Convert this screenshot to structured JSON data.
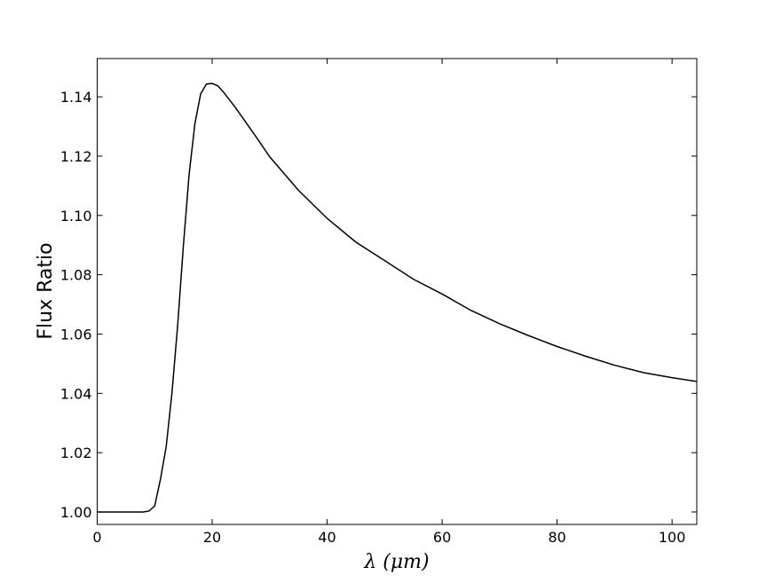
{
  "chart_data": {
    "type": "line",
    "xlabel": "λ (μm)",
    "ylabel": "Flux Ratio",
    "x": [
      0,
      8,
      9,
      10,
      11,
      12,
      13,
      14,
      15,
      16,
      17,
      18,
      19,
      20,
      21,
      22,
      24,
      26,
      28,
      30,
      35,
      40,
      45,
      50,
      55,
      60,
      65,
      70,
      75,
      80,
      85,
      90,
      95,
      100,
      104.3
    ],
    "series": [
      {
        "name": "Flux Ratio",
        "color": "#000000",
        "values": [
          1.0,
          1.0,
          1.0003,
          1.002,
          1.011,
          1.022,
          1.04,
          1.063,
          1.09,
          1.114,
          1.131,
          1.141,
          1.1443,
          1.1445,
          1.1437,
          1.1415,
          1.1365,
          1.131,
          1.1255,
          1.1198,
          1.1085,
          1.099,
          1.091,
          1.0848,
          1.0785,
          1.0735,
          1.068,
          1.0635,
          1.0595,
          1.0558,
          1.0525,
          1.0495,
          1.047,
          1.0453,
          1.044
        ]
      }
    ],
    "xlim": [
      0,
      104.3
    ],
    "ylim": [
      0.9958,
      1.1529
    ],
    "xticks": [
      0,
      20,
      40,
      60,
      80,
      100
    ],
    "yticks": [
      {
        "value": 1.0,
        "label": "1.00"
      },
      {
        "value": 1.02,
        "label": "1.02"
      },
      {
        "value": 1.04,
        "label": "1.04"
      },
      {
        "value": 1.06,
        "label": "1.06"
      },
      {
        "value": 1.08,
        "label": "1.08"
      },
      {
        "value": 1.1,
        "label": "1.10"
      },
      {
        "value": 1.12,
        "label": "1.12"
      },
      {
        "value": 1.14,
        "label": "1.14"
      }
    ],
    "grid": false
  }
}
